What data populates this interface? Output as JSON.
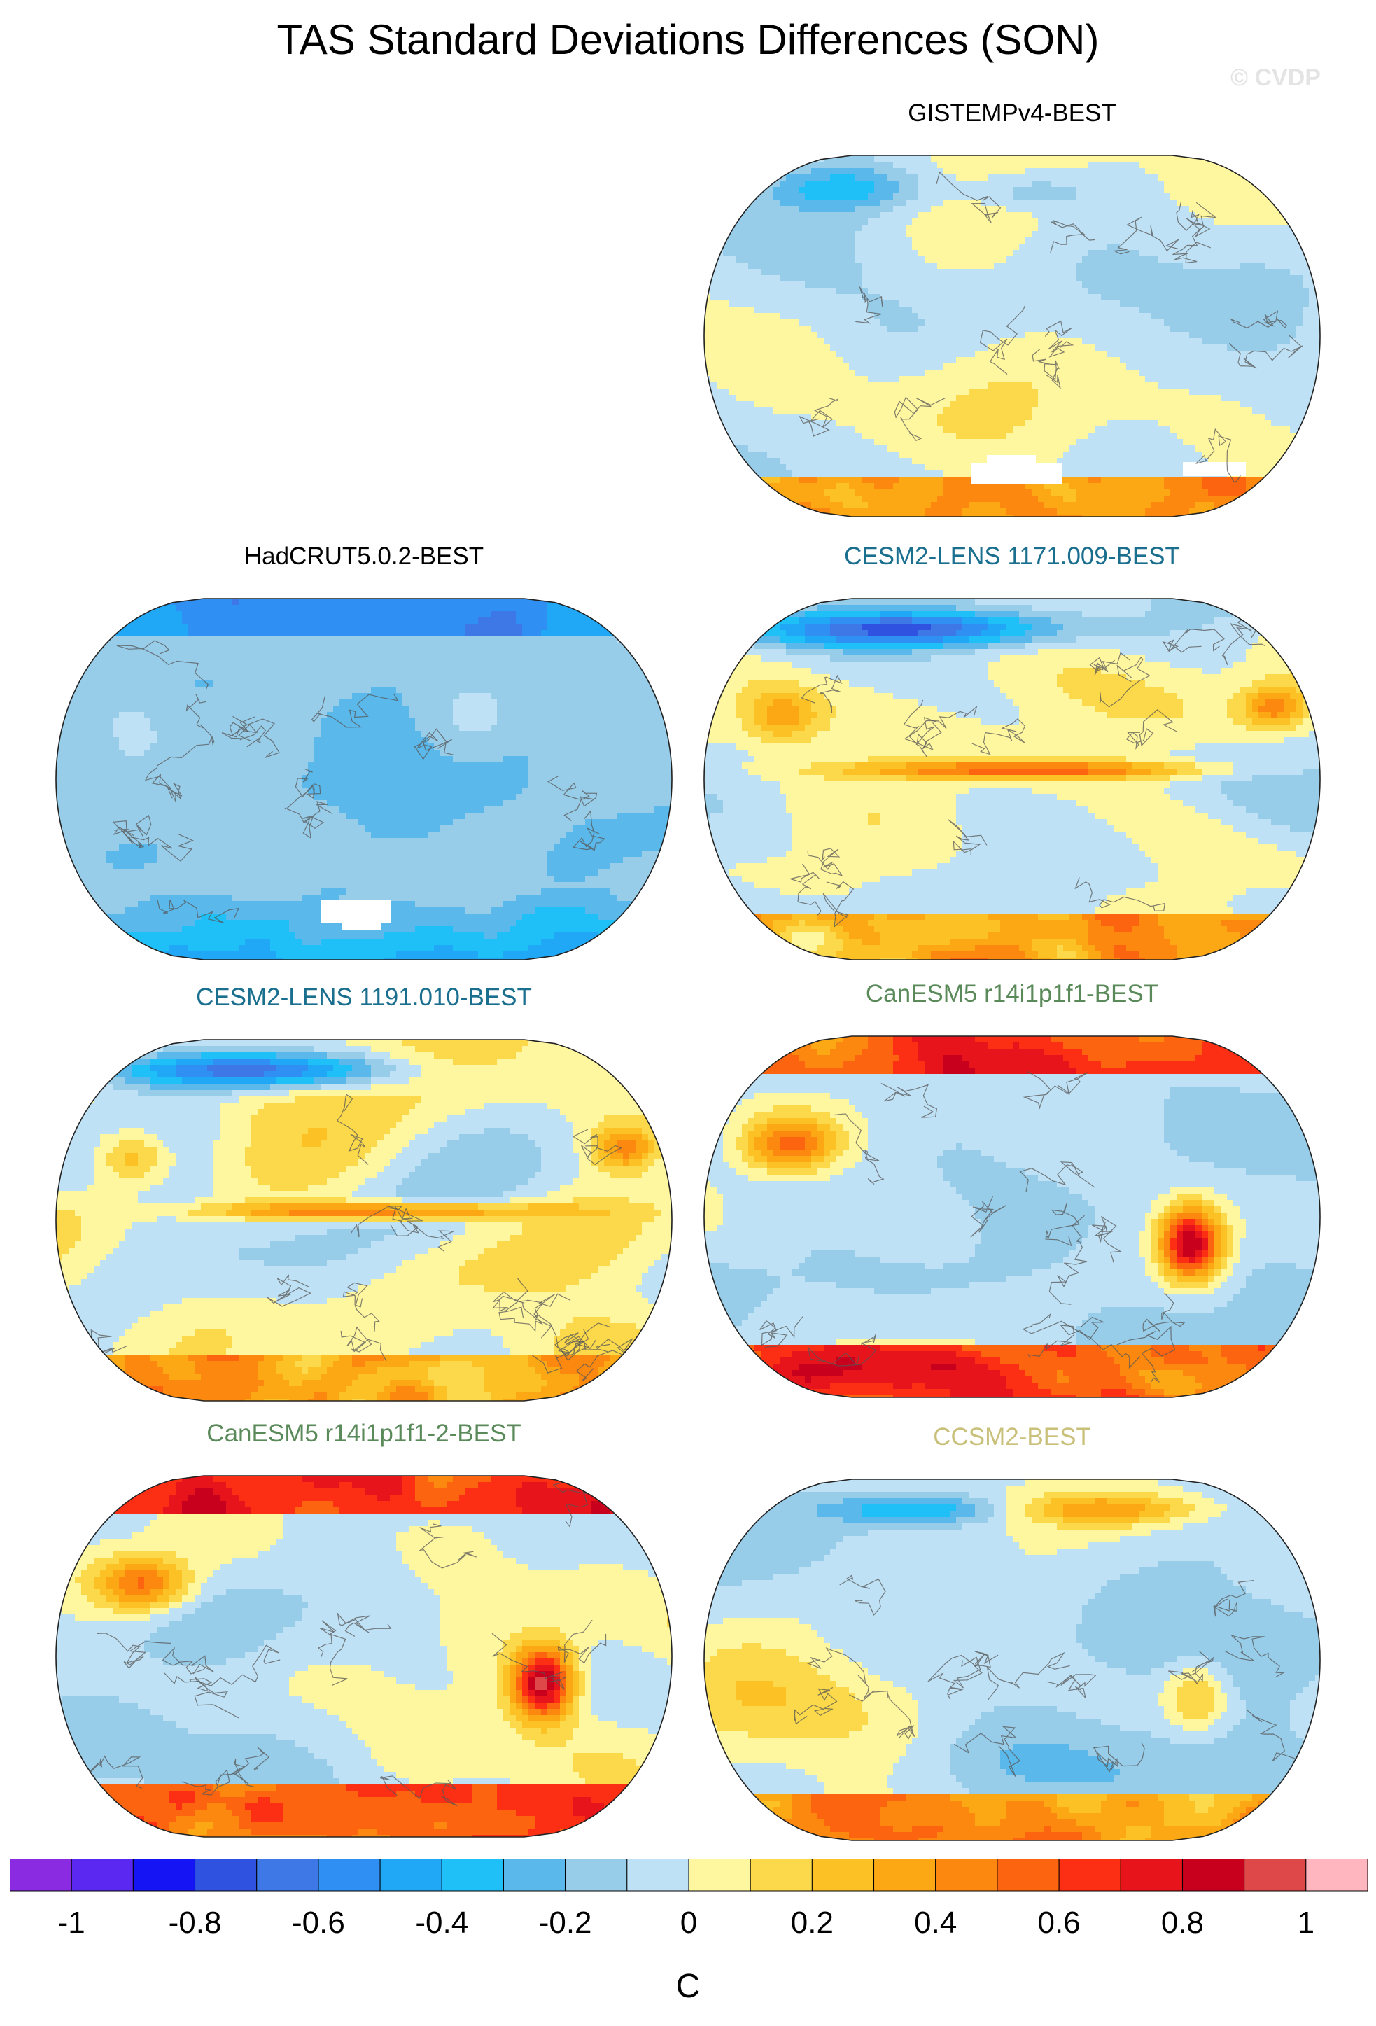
{
  "title": "TAS Standard Deviations Differences (SON)",
  "watermark": "© CVDP",
  "panels": [
    {
      "id": "gistemp",
      "label": "GISTEMPv4-BEST",
      "label_color": "#000000",
      "pattern": "obs_mixed",
      "missing": "antarctic_patches_wide"
    },
    {
      "id": "hadcrut",
      "label": "HadCRUT5.0.2-BEST",
      "label_color": "#000000",
      "pattern": "negative_dominant",
      "missing": "antarctic_patch_single"
    },
    {
      "id": "cesm2_1171",
      "label": "CESM2-LENS 1171.009-BEST",
      "label_color": "#1a6f8f",
      "pattern": "model_enso_arctic_negative",
      "missing": "none"
    },
    {
      "id": "cesm2_1191",
      "label": "CESM2-LENS 1191.010-BEST",
      "label_color": "#1a6f8f",
      "pattern": "model_enso_arctic_negative",
      "missing": "none"
    },
    {
      "id": "canesm5_a",
      "label": "CanESM5 r14i1p1f1-BEST",
      "label_color": "#5a8a5a",
      "pattern": "model_positive_high_lat",
      "missing": "none"
    },
    {
      "id": "canesm5_b",
      "label": "CanESM5 r14i1p1f1-2-BEST",
      "label_color": "#5a8a5a",
      "pattern": "model_positive_high_lat",
      "missing": "none"
    },
    {
      "id": "ccsm2",
      "label": "CCSM2-BEST",
      "label_color": "#c9c07a",
      "pattern": "model_mixed",
      "missing": "none"
    }
  ],
  "colorbar": {
    "colors": [
      "#8a2be2",
      "#5a28f0",
      "#1414f5",
      "#2f52e0",
      "#3d78e6",
      "#2f8ff2",
      "#20a7f5",
      "#1ec0f7",
      "#5ab8ea",
      "#98cdea",
      "#bfe1f5",
      "#fff6a0",
      "#fcd94a",
      "#fcc225",
      "#fca815",
      "#fc8810",
      "#fc6410",
      "#fc2e14",
      "#e8141c",
      "#c8001e",
      "#de4848",
      "#ffb6be"
    ],
    "tick_labels": [
      "-1",
      "-0.8",
      "-0.6",
      "-0.4",
      "-0.2",
      "0",
      "0.2",
      "0.4",
      "0.6",
      "0.8",
      "1"
    ],
    "levels_min": -1.05,
    "levels_step": 0.1,
    "units": "C"
  }
}
